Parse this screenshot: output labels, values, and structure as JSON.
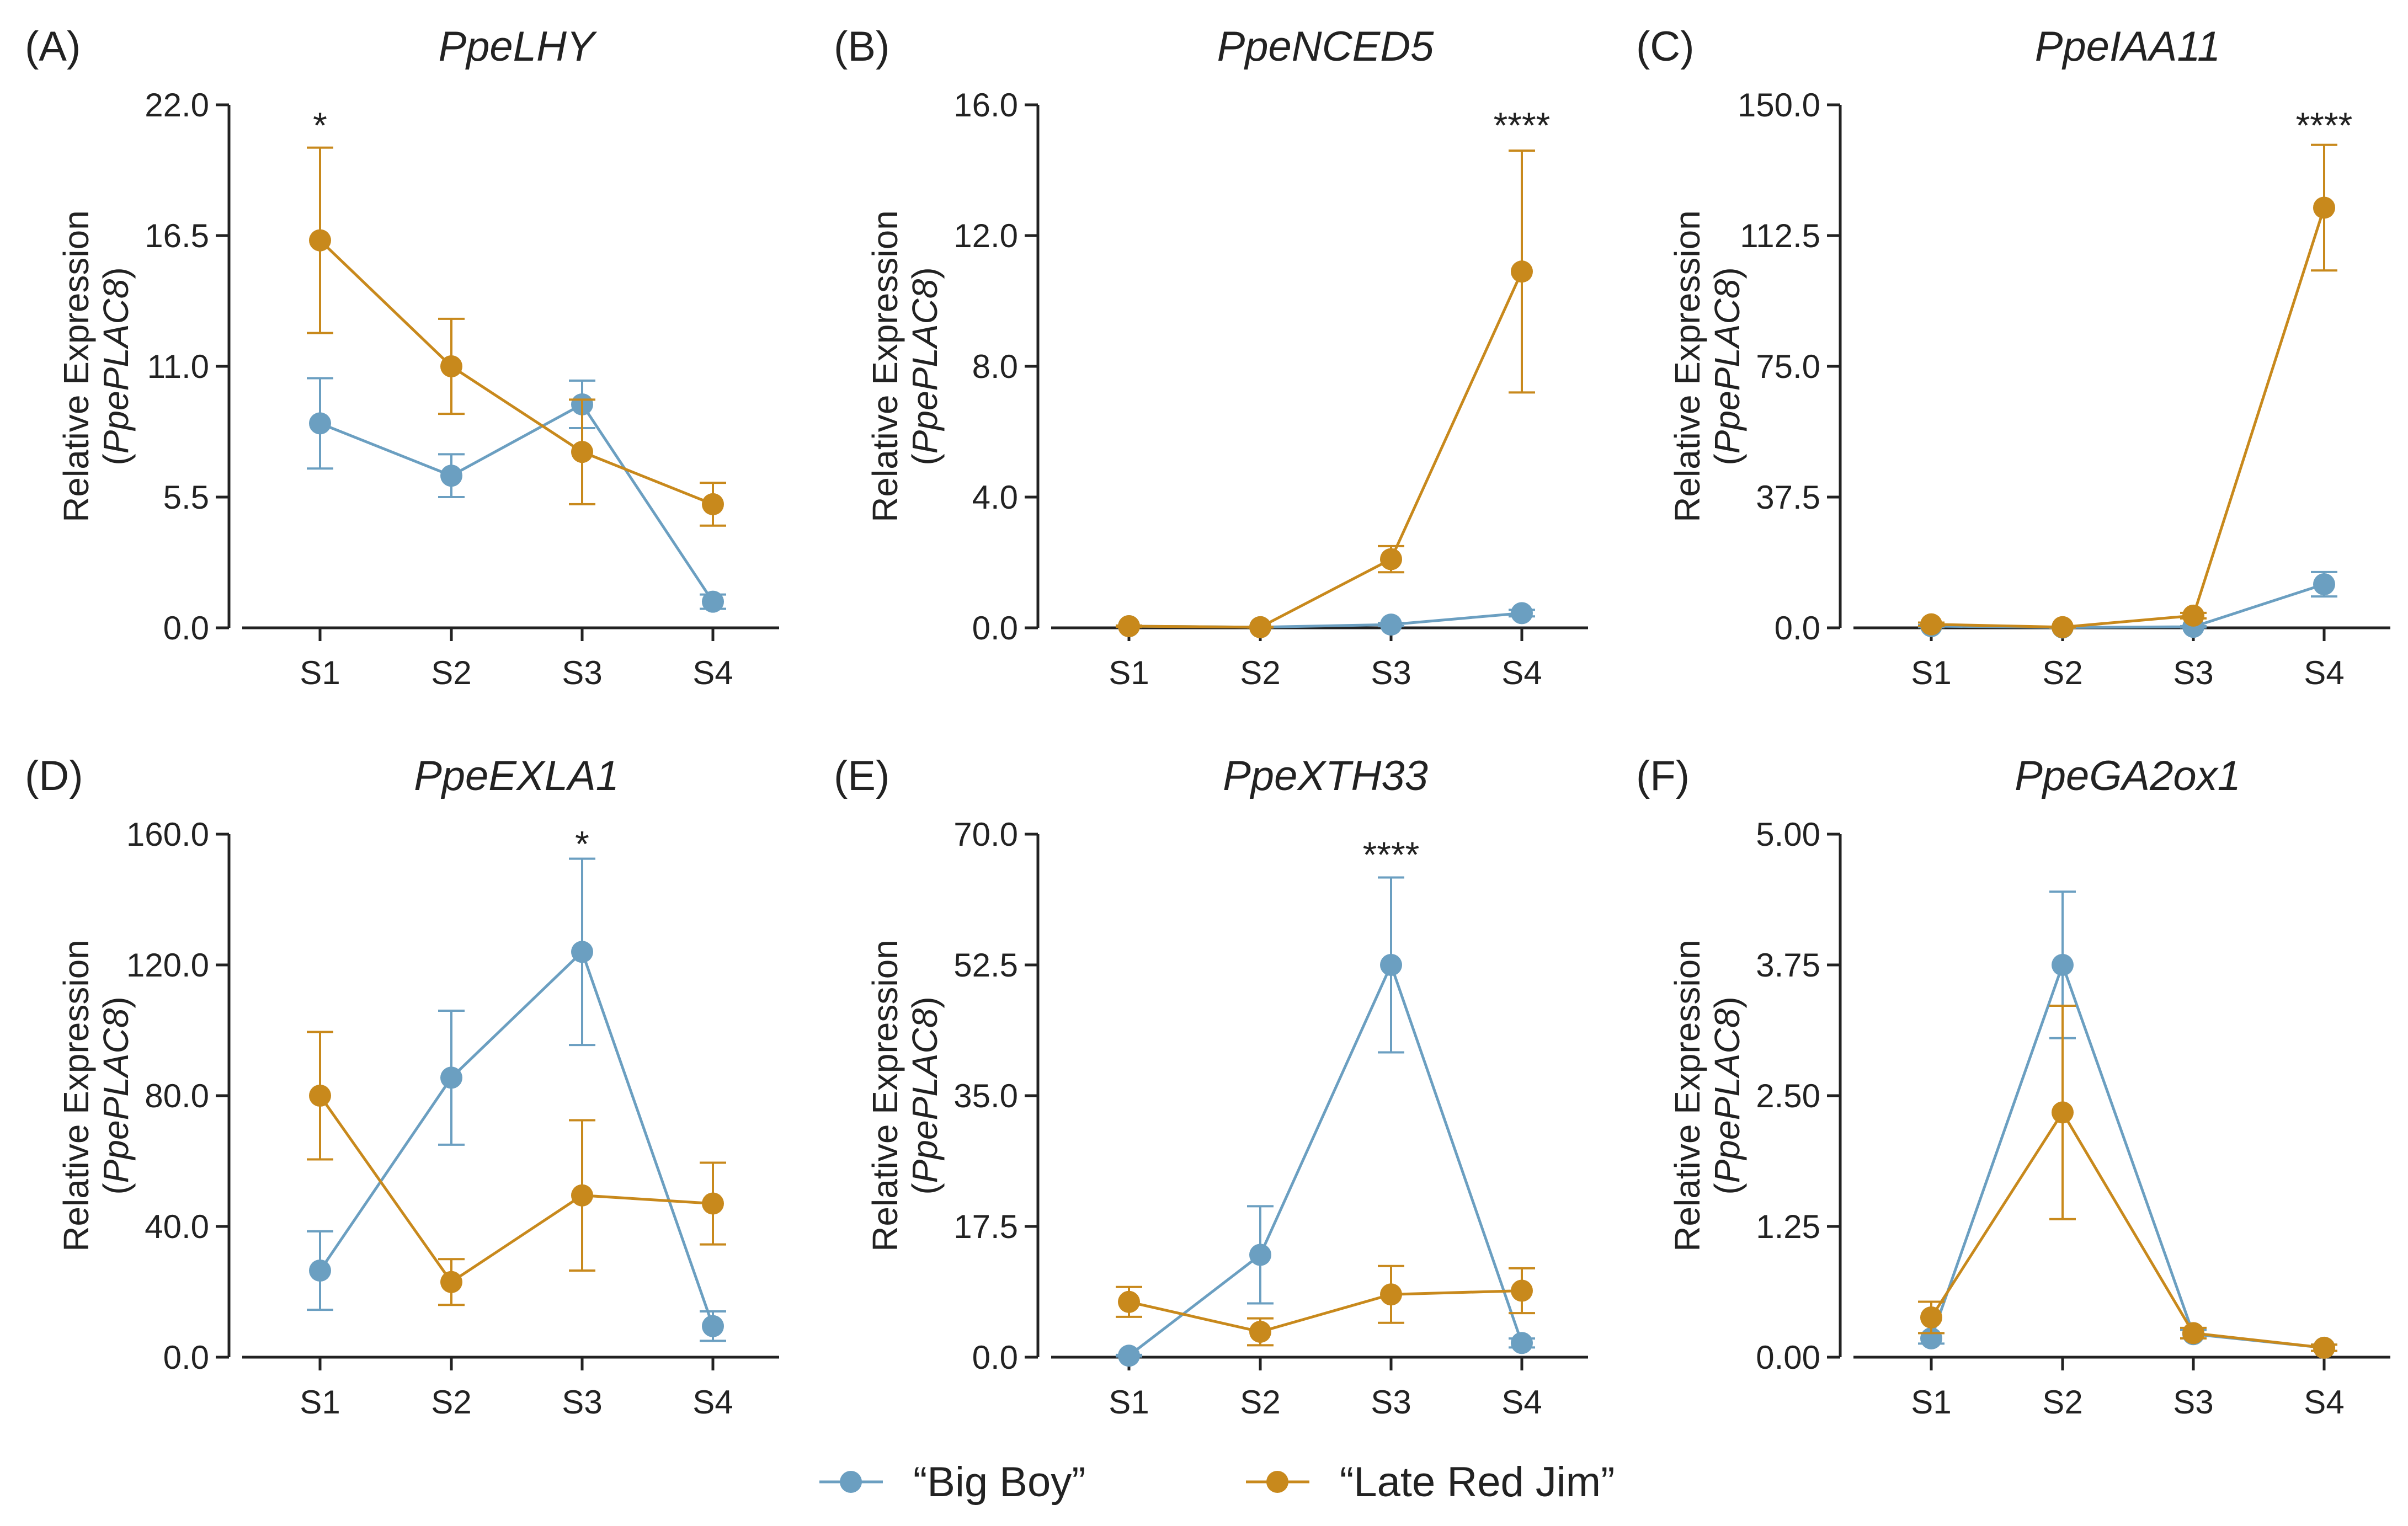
{
  "series_colors": {
    "Big Boy": "#6b9fc1",
    "Late Red Jim": "#c8891c"
  },
  "legend": [
    {
      "label": "“Big Boy”",
      "color": "#6b9fc1"
    },
    {
      "label": "“Late Red Jim”",
      "color": "#c8891c"
    }
  ],
  "chart_data": [
    {
      "type": "line",
      "panel": "(A)",
      "title": "PpeLHY",
      "ylabel_line1": "Relative Expression",
      "ylabel_gene": "PpePLAC8",
      "categories": [
        "S1",
        "S2",
        "S3",
        "S4"
      ],
      "ylim": [
        0,
        22
      ],
      "yticks": [
        "0.0",
        "5.5",
        "11.0",
        "16.5",
        "22.0"
      ],
      "series": [
        {
          "name": "“Big Boy”",
          "values": [
            8.6,
            6.4,
            9.4,
            1.1
          ],
          "errors": [
            1.9,
            0.9,
            1.0,
            0.3
          ]
        },
        {
          "name": "“Late Red Jim”",
          "values": [
            16.3,
            11.0,
            7.4,
            5.2
          ],
          "errors": [
            3.9,
            2.0,
            2.2,
            0.9
          ]
        }
      ],
      "annotations": [
        {
          "category": "S1",
          "text": "*"
        }
      ]
    },
    {
      "type": "line",
      "panel": "(B)",
      "title": "PpeNCED5",
      "ylabel_line1": "Relative Expression",
      "ylabel_gene": "PpePLAC8",
      "categories": [
        "S1",
        "S2",
        "S3",
        "S4"
      ],
      "ylim": [
        0,
        16
      ],
      "yticks": [
        "0.0",
        "4.0",
        "8.0",
        "12.0",
        "16.0"
      ],
      "series": [
        {
          "name": "“Big Boy”",
          "values": [
            0.05,
            0.02,
            0.1,
            0.45
          ],
          "errors": [
            0.02,
            0.01,
            0.05,
            0.1
          ]
        },
        {
          "name": "“Late Red Jim”",
          "values": [
            0.05,
            0.02,
            2.1,
            10.9
          ],
          "errors": [
            0.02,
            0.01,
            0.4,
            3.7
          ]
        }
      ],
      "annotations": [
        {
          "category": "S4",
          "text": "****"
        }
      ]
    },
    {
      "type": "line",
      "panel": "(C)",
      "title": "PpeIAA11",
      "ylabel_line1": "Relative Expression",
      "ylabel_gene": "PpePLAC8",
      "categories": [
        "S1",
        "S2",
        "S3",
        "S4"
      ],
      "ylim": [
        0,
        150
      ],
      "yticks": [
        "0.0",
        "37.5",
        "75.0",
        "112.5",
        "150.0"
      ],
      "series": [
        {
          "name": "“Big Boy”",
          "values": [
            0.5,
            0.1,
            0.3,
            12.5
          ],
          "errors": [
            0.3,
            0.1,
            0.2,
            3.5
          ]
        },
        {
          "name": "“Late Red Jim”",
          "values": [
            1.0,
            0.2,
            3.5,
            120.5
          ],
          "errors": [
            0.5,
            0.1,
            0.8,
            18.0
          ]
        }
      ],
      "annotations": [
        {
          "category": "S4",
          "text": "****"
        }
      ]
    },
    {
      "type": "line",
      "panel": "(D)",
      "title": "PpeEXLA1",
      "ylabel_line1": "Relative Expression",
      "ylabel_gene": "PpePLAC8",
      "categories": [
        "S1",
        "S2",
        "S3",
        "S4"
      ],
      "ylim": [
        0,
        160
      ],
      "yticks": [
        "0.0",
        "40.0",
        "80.0",
        "120.0",
        "160.0"
      ],
      "series": [
        {
          "name": "“Big Boy”",
          "values": [
            26.5,
            85.5,
            124.0,
            9.5
          ],
          "errors": [
            12.0,
            20.5,
            28.5,
            4.5
          ]
        },
        {
          "name": "“Late Red Jim”",
          "values": [
            80.0,
            23.0,
            49.5,
            47.0
          ],
          "errors": [
            19.5,
            7.0,
            23.0,
            12.5
          ]
        }
      ],
      "annotations": [
        {
          "category": "S3",
          "text": "*"
        }
      ]
    },
    {
      "type": "line",
      "panel": "(E)",
      "title": "PpeXTH33",
      "ylabel_line1": "Relative Expression",
      "ylabel_gene": "PpePLAC8",
      "categories": [
        "S1",
        "S2",
        "S3",
        "S4"
      ],
      "ylim": [
        0,
        70
      ],
      "yticks": [
        "0.0",
        "17.5",
        "35.0",
        "52.5",
        "70.0"
      ],
      "series": [
        {
          "name": "“Big Boy”",
          "values": [
            0.2,
            13.7,
            52.5,
            1.9
          ],
          "errors": [
            0.1,
            6.5,
            11.7,
            0.6
          ]
        },
        {
          "name": "“Late Red Jim”",
          "values": [
            7.4,
            3.4,
            8.4,
            8.9
          ],
          "errors": [
            2.0,
            1.8,
            3.8,
            3.0
          ]
        }
      ],
      "annotations": [
        {
          "category": "S3",
          "text": "****"
        }
      ]
    },
    {
      "type": "line",
      "panel": "(F)",
      "title": "PpeGA2ox1",
      "ylabel_line1": "Relative Expression",
      "ylabel_gene": "PpePLAC8",
      "categories": [
        "S1",
        "S2",
        "S3",
        "S4"
      ],
      "ylim": [
        0,
        5
      ],
      "yticks": [
        "0.00",
        "1.25",
        "2.50",
        "3.75",
        "5.00"
      ],
      "series": [
        {
          "name": "“Big Boy”",
          "values": [
            0.18,
            3.75,
            0.22,
            0.09
          ],
          "errors": [
            0.05,
            0.7,
            0.04,
            0.03
          ]
        },
        {
          "name": "“Late Red Jim”",
          "values": [
            0.38,
            2.34,
            0.23,
            0.09
          ],
          "errors": [
            0.15,
            1.02,
            0.05,
            0.03
          ]
        }
      ],
      "annotations": []
    }
  ]
}
